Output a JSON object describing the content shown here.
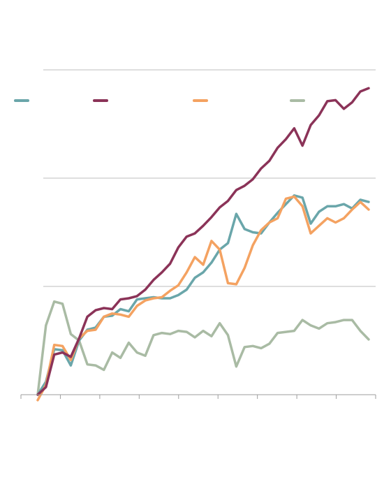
{
  "chart_data": {
    "type": "line",
    "title": "",
    "xlabel": "",
    "ylabel": "",
    "grid": true,
    "legend_position": "top",
    "ylim": [
      0,
      3
    ],
    "y_gridlines": [
      1,
      2,
      3
    ],
    "xlim": [
      0,
      42
    ],
    "x_tick_count": 10,
    "series": [
      {
        "color": "#6aa6aa",
        "x": [
          2,
          3,
          4,
          5,
          6,
          7,
          8,
          9,
          10,
          11,
          12,
          13,
          14,
          15,
          16,
          17,
          18,
          19,
          20,
          21,
          22,
          23,
          24,
          25,
          26,
          27,
          28,
          29,
          30,
          31,
          32,
          33,
          34,
          35,
          36,
          37,
          38,
          39,
          40,
          41,
          42
        ],
        "values": [
          0.0,
          0.12,
          0.42,
          0.41,
          0.27,
          0.5,
          0.6,
          0.62,
          0.72,
          0.73,
          0.79,
          0.77,
          0.88,
          0.89,
          0.9,
          0.89,
          0.89,
          0.92,
          0.97,
          1.08,
          1.13,
          1.22,
          1.34,
          1.4,
          1.67,
          1.53,
          1.5,
          1.49,
          1.59,
          1.68,
          1.76,
          1.84,
          1.82,
          1.58,
          1.69,
          1.74,
          1.74,
          1.76,
          1.72,
          1.8,
          1.78
        ]
      },
      {
        "color": "#8b3358",
        "x": [
          2,
          3,
          4,
          5,
          6,
          7,
          8,
          9,
          10,
          11,
          12,
          13,
          14,
          15,
          16,
          17,
          18,
          19,
          20,
          21,
          22,
          23,
          24,
          25,
          26,
          27,
          28,
          29,
          30,
          31,
          32,
          33,
          34,
          35,
          36,
          37,
          38,
          39,
          40,
          41,
          42
        ],
        "values": [
          0.0,
          0.07,
          0.37,
          0.39,
          0.35,
          0.52,
          0.72,
          0.78,
          0.8,
          0.79,
          0.88,
          0.89,
          0.91,
          0.97,
          1.06,
          1.13,
          1.21,
          1.36,
          1.46,
          1.49,
          1.56,
          1.64,
          1.73,
          1.79,
          1.89,
          1.93,
          1.99,
          2.09,
          2.16,
          2.28,
          2.36,
          2.46,
          2.3,
          2.49,
          2.58,
          2.71,
          2.72,
          2.64,
          2.7,
          2.8,
          2.83
        ]
      },
      {
        "color": "#f4a261",
        "x": [
          2,
          3,
          4,
          5,
          6,
          7,
          8,
          9,
          10,
          11,
          12,
          13,
          14,
          15,
          16,
          17,
          18,
          19,
          20,
          21,
          22,
          23,
          24,
          25,
          26,
          27,
          28,
          29,
          30,
          31,
          32,
          33,
          34,
          35,
          36,
          37,
          38,
          39,
          40,
          41,
          42
        ],
        "values": [
          -0.05,
          0.09,
          0.46,
          0.45,
          0.32,
          0.52,
          0.59,
          0.6,
          0.72,
          0.75,
          0.74,
          0.72,
          0.82,
          0.87,
          0.89,
          0.9,
          0.96,
          1.01,
          1.13,
          1.27,
          1.2,
          1.42,
          1.34,
          1.03,
          1.02,
          1.17,
          1.38,
          1.52,
          1.59,
          1.63,
          1.81,
          1.83,
          1.74,
          1.49,
          1.56,
          1.63,
          1.59,
          1.63,
          1.71,
          1.78,
          1.71
        ]
      },
      {
        "color": "#a9bba4",
        "x": [
          2,
          3,
          4,
          5,
          6,
          7,
          8,
          9,
          10,
          11,
          12,
          13,
          14,
          15,
          16,
          17,
          18,
          19,
          20,
          21,
          22,
          23,
          24,
          25,
          26,
          27,
          28,
          29,
          30,
          31,
          32,
          33,
          34,
          35,
          36,
          37,
          38,
          39,
          40,
          41,
          42
        ],
        "values": [
          0.0,
          0.64,
          0.86,
          0.84,
          0.56,
          0.5,
          0.28,
          0.27,
          0.23,
          0.39,
          0.34,
          0.48,
          0.39,
          0.36,
          0.55,
          0.57,
          0.56,
          0.59,
          0.58,
          0.53,
          0.59,
          0.54,
          0.66,
          0.55,
          0.26,
          0.44,
          0.45,
          0.43,
          0.47,
          0.57,
          0.58,
          0.59,
          0.69,
          0.64,
          0.61,
          0.66,
          0.67,
          0.69,
          0.69,
          0.59,
          0.51
        ]
      }
    ]
  }
}
